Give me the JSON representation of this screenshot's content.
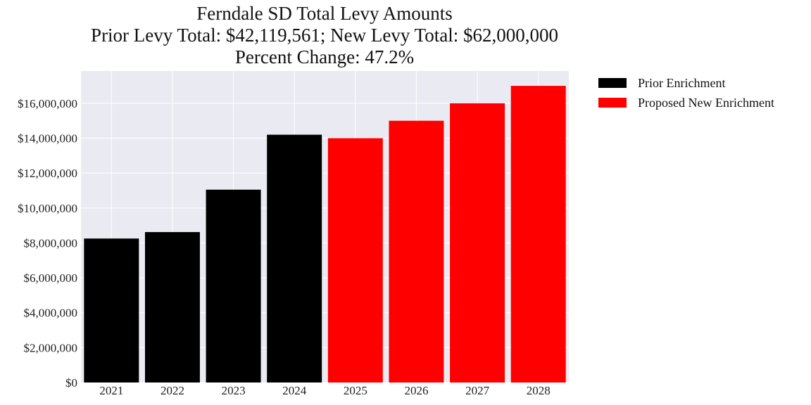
{
  "chart_data": {
    "type": "bar",
    "title": "Ferndale SD Total Levy Amounts",
    "subtitle_lines": [
      "Prior Levy Total:  $42,119,561; New Levy Total: $62,000,000",
      "Percent Change: 47.2%"
    ],
    "categories": [
      "2021",
      "2022",
      "2023",
      "2024",
      "2025",
      "2026",
      "2027",
      "2028"
    ],
    "values": [
      8250000,
      8620000,
      11050000,
      14200000,
      14000000,
      15000000,
      16000000,
      17000000
    ],
    "bar_groups": [
      "Prior Enrichment",
      "Prior Enrichment",
      "Prior Enrichment",
      "Prior Enrichment",
      "Proposed New Enrichment",
      "Proposed New Enrichment",
      "Proposed New Enrichment",
      "Proposed New Enrichment"
    ],
    "legend": [
      {
        "label": "Prior Enrichment",
        "color": "#000000"
      },
      {
        "label": "Proposed New Enrichment",
        "color": "#ff0000"
      }
    ],
    "yticks": [
      0,
      2000000,
      4000000,
      6000000,
      8000000,
      10000000,
      12000000,
      14000000,
      16000000
    ],
    "ytick_labels": [
      "$0",
      "$2,000,000",
      "$4,000,000",
      "$6,000,000",
      "$8,000,000",
      "$10,000,000",
      "$12,000,000",
      "$14,000,000",
      "$16,000,000"
    ],
    "ylim": [
      0,
      17850000
    ],
    "xlabel": "",
    "ylabel": "",
    "grid": true,
    "legend_position": "outside-top-right",
    "background_color": "#eaeaf2",
    "grid_color": "#ffffff"
  }
}
